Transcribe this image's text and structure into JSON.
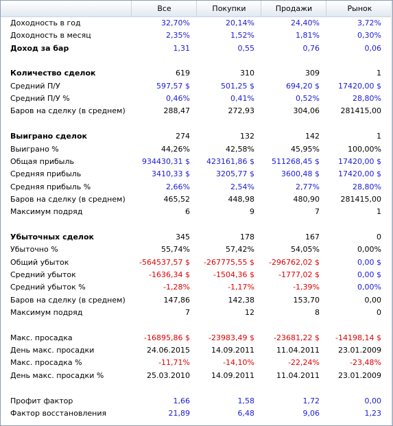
{
  "header": {
    "col0": "Все",
    "col1": "Покупки",
    "col2": "Продажи",
    "col3": "Рынок"
  },
  "rows": [
    {
      "label": "Доходность в год",
      "bold": false,
      "color": "blue",
      "v": [
        "32,70%",
        "20,14%",
        "24,40%",
        "3,72%"
      ]
    },
    {
      "label": "Доходность в месяц",
      "bold": false,
      "color": "blue",
      "v": [
        "2,35%",
        "1,52%",
        "1,81%",
        "0,30%"
      ]
    },
    {
      "label": "Доход за бар",
      "bold": true,
      "color": "blue",
      "v": [
        "1,31",
        "0,55",
        "0,76",
        "0,06"
      ]
    },
    {
      "label": "",
      "bold": false,
      "color": "black",
      "v": [
        "",
        "",
        "",
        ""
      ]
    },
    {
      "label": "Количество сделок",
      "bold": true,
      "color": "black",
      "v": [
        "619",
        "310",
        "309",
        "1"
      ]
    },
    {
      "label": "Средний П/У",
      "bold": false,
      "color": "blue",
      "v": [
        "597,57 $",
        "501,25 $",
        "694,20 $",
        "17420,00 $"
      ]
    },
    {
      "label": "Средний П/У %",
      "bold": false,
      "color": "blue",
      "v": [
        "0,46%",
        "0,41%",
        "0,52%",
        "28,80%"
      ]
    },
    {
      "label": "Баров на сделку (в среднем)",
      "bold": false,
      "color": "black",
      "v": [
        "288,47",
        "272,93",
        "304,06",
        "281415,00"
      ]
    },
    {
      "label": "",
      "bold": false,
      "color": "black",
      "v": [
        "",
        "",
        "",
        ""
      ]
    },
    {
      "label": "Выиграно сделок",
      "bold": true,
      "color": "black",
      "v": [
        "274",
        "132",
        "142",
        "1"
      ]
    },
    {
      "label": "Выиграно %",
      "bold": false,
      "color": "black",
      "v": [
        "44,26%",
        "42,58%",
        "45,95%",
        "100,00%"
      ]
    },
    {
      "label": "Общая прибыль",
      "bold": false,
      "color": "blue",
      "v": [
        "934430,31 $",
        "423161,86 $",
        "511268,45 $",
        "17420,00 $"
      ]
    },
    {
      "label": "Средняя прибыль",
      "bold": false,
      "color": "blue",
      "v": [
        "3410,33 $",
        "3205,77 $",
        "3600,48 $",
        "17420,00 $"
      ]
    },
    {
      "label": "Средняя прибыль %",
      "bold": false,
      "color": "blue",
      "v": [
        "2,66%",
        "2,54%",
        "2,77%",
        "28,80%"
      ]
    },
    {
      "label": "Баров на сделку (в среднем)",
      "bold": false,
      "color": "black",
      "v": [
        "465,52",
        "448,98",
        "480,90",
        "281415,00"
      ]
    },
    {
      "label": "Максимум подряд",
      "bold": false,
      "color": "black",
      "v": [
        "6",
        "9",
        "7",
        "1"
      ]
    },
    {
      "label": "",
      "bold": false,
      "color": "black",
      "v": [
        "",
        "",
        "",
        ""
      ]
    },
    {
      "label": "Убыточных сделок",
      "bold": true,
      "color": "black",
      "v": [
        "345",
        "178",
        "167",
        "0"
      ]
    },
    {
      "label": "Убыточно %",
      "bold": false,
      "color": "black",
      "v": [
        "55,74%",
        "57,42%",
        "54,05%",
        "0,00%"
      ]
    },
    {
      "label": "Общий убыток",
      "bold": false,
      "color": "red",
      "v": [
        "-564537,57 $",
        "-267775,55 $",
        "-296762,02 $",
        "0,00 $"
      ],
      "lastBlue": true
    },
    {
      "label": "Средний убыток",
      "bold": false,
      "color": "red",
      "v": [
        "-1636,34 $",
        "-1504,36 $",
        "-1777,02 $",
        "0,00 $"
      ],
      "lastBlue": true
    },
    {
      "label": "Средний убыток %",
      "bold": false,
      "color": "red",
      "v": [
        "-1,28%",
        "-1,17%",
        "-1,39%",
        "0,00%"
      ],
      "lastBlue": true
    },
    {
      "label": "Баров на сделку (в среднем)",
      "bold": false,
      "color": "black",
      "v": [
        "147,86",
        "142,38",
        "153,70",
        "0,00"
      ]
    },
    {
      "label": "Максимум подряд",
      "bold": false,
      "color": "black",
      "v": [
        "7",
        "12",
        "8",
        "0"
      ]
    },
    {
      "label": "",
      "bold": false,
      "color": "black",
      "v": [
        "",
        "",
        "",
        ""
      ]
    },
    {
      "label": "Макс. просадка",
      "bold": false,
      "color": "red",
      "v": [
        "-16895,86 $",
        "-23983,49 $",
        "-23681,22 $",
        "-14198,14 $"
      ]
    },
    {
      "label": "День макс. просадки",
      "bold": false,
      "color": "black",
      "v": [
        "24.06.2015",
        "14.09.2011",
        "11.04.2011",
        "23.01.2009"
      ]
    },
    {
      "label": "Макс. просадка %",
      "bold": false,
      "color": "red",
      "v": [
        "-11,71%",
        "-14,10%",
        "-22,24%",
        "-23,48%"
      ]
    },
    {
      "label": "День макс. просадки %",
      "bold": false,
      "color": "black",
      "v": [
        "25.03.2010",
        "14.09.2011",
        "11.04.2011",
        "23.01.2009"
      ]
    },
    {
      "label": "",
      "bold": false,
      "color": "black",
      "v": [
        "",
        "",
        "",
        ""
      ]
    },
    {
      "label": "Профит фактор",
      "bold": false,
      "color": "blue",
      "v": [
        "1,66",
        "1,58",
        "1,72",
        "0,00"
      ]
    },
    {
      "label": "Фактор восстановления",
      "bold": false,
      "color": "blue",
      "v": [
        "21,89",
        "6,48",
        "9,06",
        "1,23"
      ]
    }
  ],
  "colors": {
    "blue": "#1a1ad6",
    "red": "#e00000",
    "black": "#000000"
  }
}
